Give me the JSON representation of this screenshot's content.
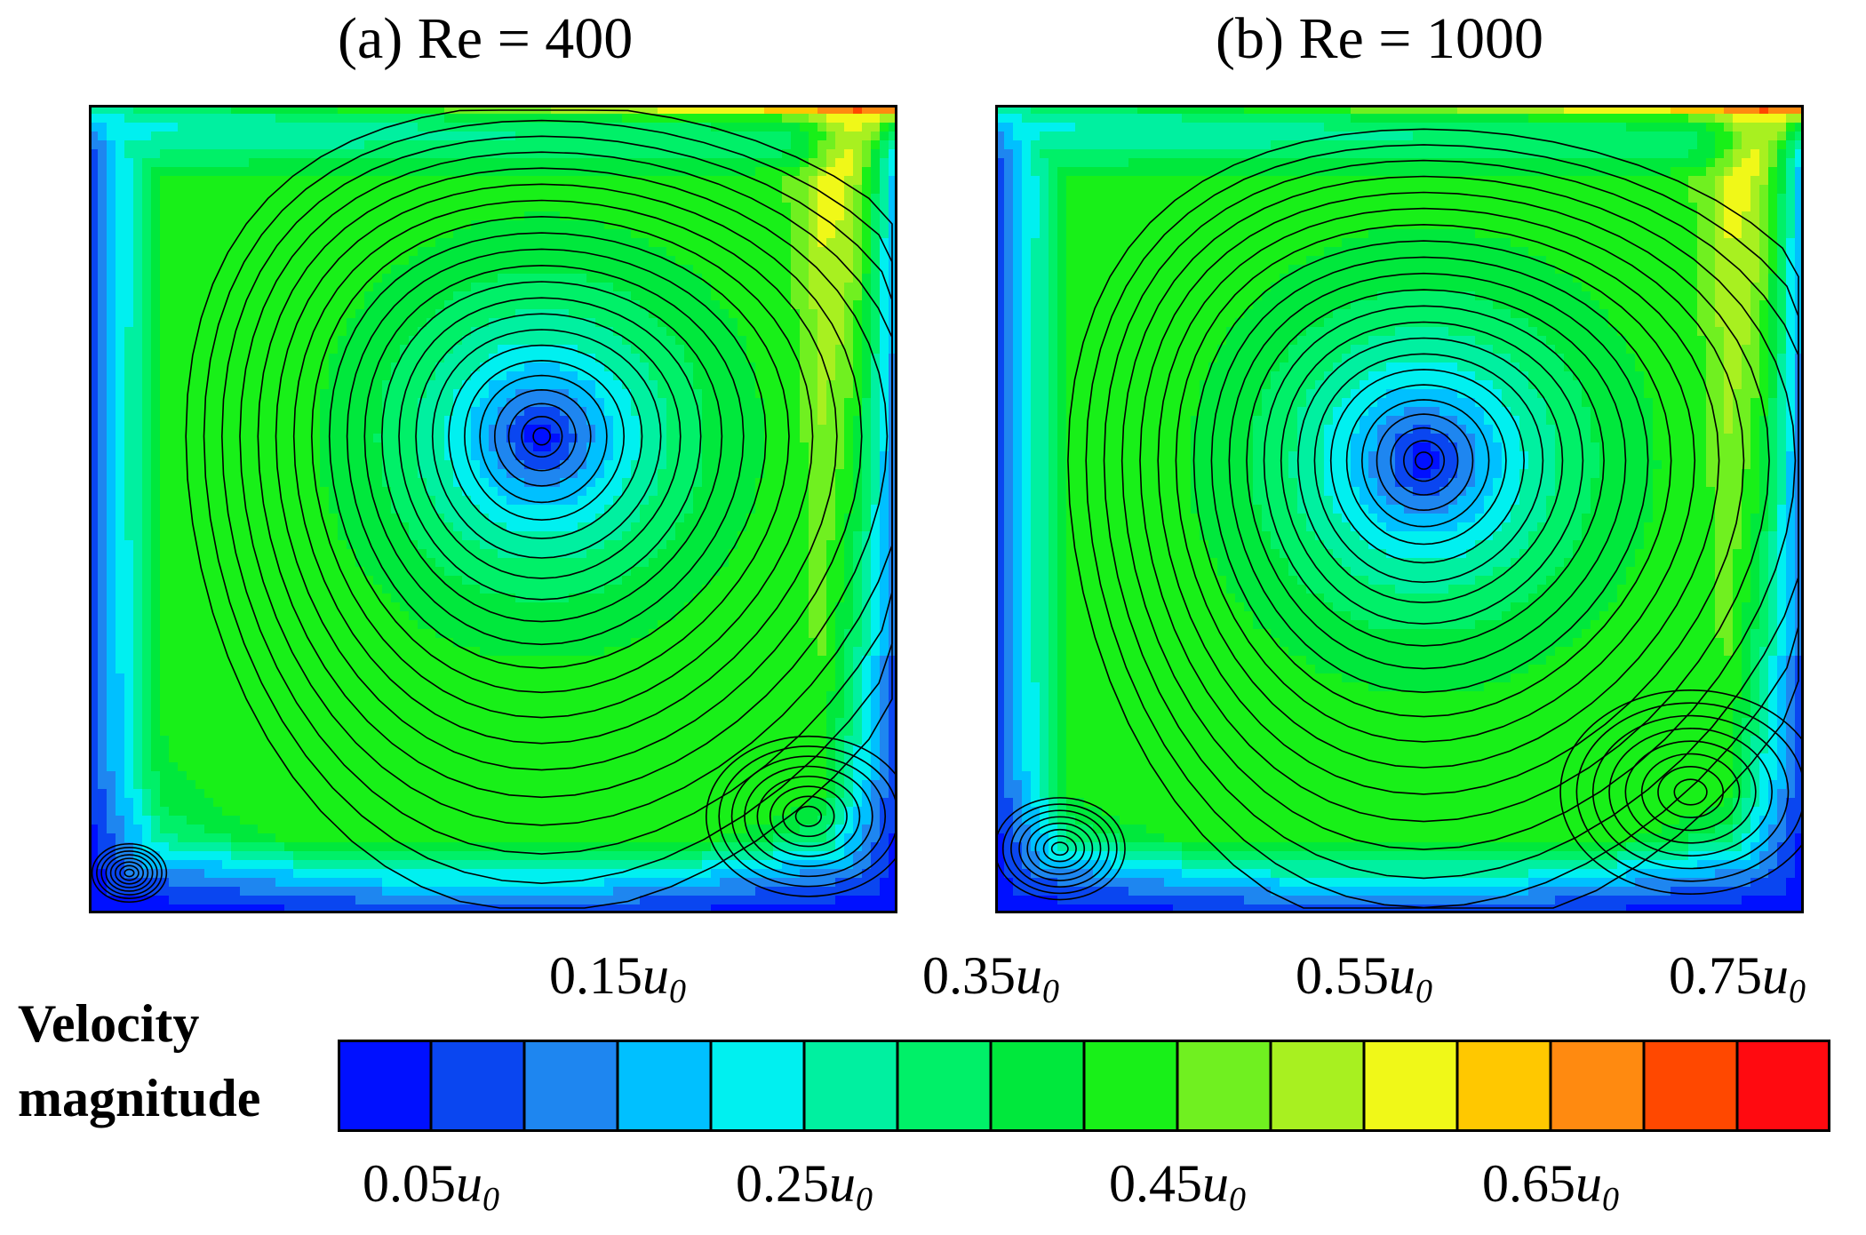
{
  "chart_data": {
    "type": "heatmap",
    "description_kind": "lid-driven cavity velocity magnitude contours with streamlines",
    "panels": [
      {
        "title": "(a) Re = 400",
        "Re": 400,
        "primary_vortex_center": [
          0.56,
          0.41
        ],
        "primary_vortex_scale": 0.42,
        "secondary_vortices": [
          {
            "location": "bottom-right",
            "center": [
              0.89,
              0.88
            ],
            "size": 0.11
          },
          {
            "location": "bottom-left",
            "center": [
              0.05,
              0.95
            ],
            "size": 0.04
          }
        ]
      },
      {
        "title": "(b) Re = 1000",
        "Re": 1000,
        "primary_vortex_center": [
          0.53,
          0.44
        ],
        "primary_vortex_scale": 0.44,
        "secondary_vortices": [
          {
            "location": "bottom-right",
            "center": [
              0.86,
              0.85
            ],
            "size": 0.14
          },
          {
            "location": "bottom-left",
            "center": [
              0.08,
              0.92
            ],
            "size": 0.07
          }
        ]
      }
    ],
    "colorbar": {
      "label_line1": "Velocity",
      "label_line2": "magnitude",
      "unit_symbol": "u",
      "unit_subscript": "0",
      "levels": [
        0.05,
        0.1,
        0.15,
        0.2,
        0.25,
        0.3,
        0.35,
        0.4,
        0.45,
        0.5,
        0.55,
        0.6,
        0.65,
        0.7,
        0.75
      ],
      "colors": [
        "#0010ff",
        "#0a46f0",
        "#1e86f0",
        "#00c0ff",
        "#00f0f0",
        "#00f0a0",
        "#00f068",
        "#00e83c",
        "#18f018",
        "#70f020",
        "#a8f020",
        "#f0f818",
        "#ffc800",
        "#ff8a10",
        "#ff4800",
        "#ff0a10"
      ],
      "ticks_top": [
        "0.15",
        "0.35",
        "0.55",
        "0.75"
      ],
      "ticks_bottom": [
        "0.05",
        "0.25",
        "0.45",
        "0.65"
      ],
      "range": [
        0,
        0.8
      ]
    }
  }
}
